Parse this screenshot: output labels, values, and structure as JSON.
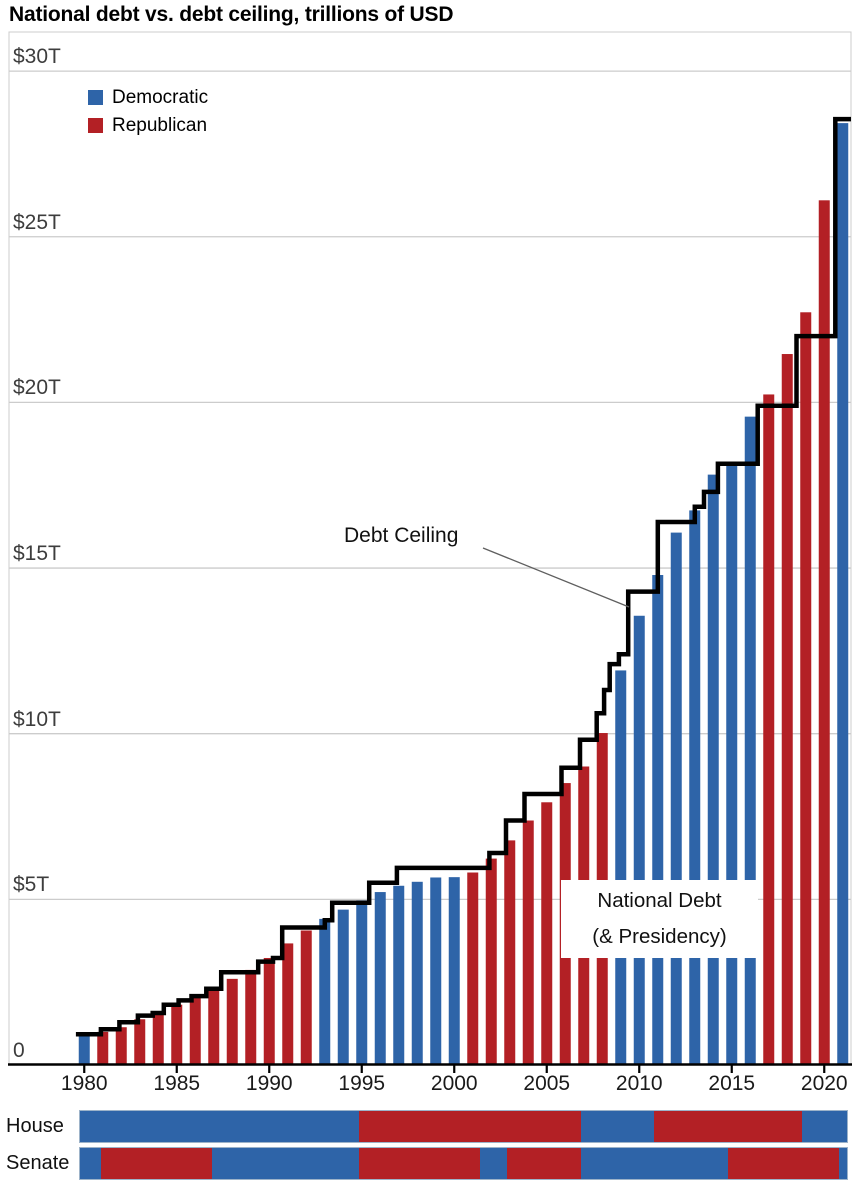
{
  "title": "National debt vs. debt ceiling, trillions of USD",
  "legend": {
    "items": [
      {
        "label": "Democratic",
        "party": "D"
      },
      {
        "label": "Republican",
        "party": "R"
      }
    ]
  },
  "annotations": {
    "ceiling_label": "Debt Ceiling",
    "debt_label_line1": "National Debt",
    "debt_label_line2": "(& Presidency)"
  },
  "colors": {
    "democratic": "#2e64a8",
    "republican": "#b32025",
    "ceiling_line": "#000000",
    "gridline": "#cccccc",
    "plot_border": "#cccccc",
    "axis": "#000000",
    "leader_line": "#5f5f5f"
  },
  "y_axis": {
    "ticks": [
      {
        "label": "$30T",
        "value": 30
      },
      {
        "label": "$25T",
        "value": 25
      },
      {
        "label": "$20T",
        "value": 20
      },
      {
        "label": "$15T",
        "value": 15
      },
      {
        "label": "$10T",
        "value": 10
      },
      {
        "label": "$5T",
        "value": 5
      },
      {
        "label": "0",
        "value": 0
      }
    ]
  },
  "x_axis": {
    "tick_years": [
      1980,
      1985,
      1990,
      1995,
      2000,
      2005,
      2010,
      2015,
      2020
    ]
  },
  "chart_data": {
    "type": "bar",
    "title": "National debt vs. debt ceiling, trillions of USD",
    "ylabel": "Trillions of USD",
    "ylim": [
      0,
      30
    ],
    "x_range": [
      1979.5,
      2021.5
    ],
    "grid": true,
    "series": [
      {
        "name": "National debt (& Presidency)",
        "unit": "trillions USD",
        "points": [
          {
            "year": 1980,
            "value": 0.91,
            "party": "D"
          },
          {
            "year": 1981,
            "value": 1.0,
            "party": "R"
          },
          {
            "year": 1982,
            "value": 1.14,
            "party": "R"
          },
          {
            "year": 1983,
            "value": 1.38,
            "party": "R"
          },
          {
            "year": 1984,
            "value": 1.57,
            "party": "R"
          },
          {
            "year": 1985,
            "value": 1.82,
            "party": "R"
          },
          {
            "year": 1986,
            "value": 2.12,
            "party": "R"
          },
          {
            "year": 1987,
            "value": 2.35,
            "party": "R"
          },
          {
            "year": 1988,
            "value": 2.6,
            "party": "R"
          },
          {
            "year": 1989,
            "value": 2.87,
            "party": "R"
          },
          {
            "year": 1990,
            "value": 3.23,
            "party": "R"
          },
          {
            "year": 1991,
            "value": 3.67,
            "party": "R"
          },
          {
            "year": 1992,
            "value": 4.06,
            "party": "R"
          },
          {
            "year": 1993,
            "value": 4.41,
            "party": "D"
          },
          {
            "year": 1994,
            "value": 4.69,
            "party": "D"
          },
          {
            "year": 1995,
            "value": 4.97,
            "party": "D"
          },
          {
            "year": 1996,
            "value": 5.22,
            "party": "D"
          },
          {
            "year": 1997,
            "value": 5.41,
            "party": "D"
          },
          {
            "year": 1998,
            "value": 5.53,
            "party": "D"
          },
          {
            "year": 1999,
            "value": 5.66,
            "party": "D"
          },
          {
            "year": 2000,
            "value": 5.67,
            "party": "D"
          },
          {
            "year": 2001,
            "value": 5.81,
            "party": "R"
          },
          {
            "year": 2002,
            "value": 6.23,
            "party": "R"
          },
          {
            "year": 2003,
            "value": 6.78,
            "party": "R"
          },
          {
            "year": 2004,
            "value": 7.38,
            "party": "R"
          },
          {
            "year": 2005,
            "value": 7.93,
            "party": "R"
          },
          {
            "year": 2006,
            "value": 8.51,
            "party": "R"
          },
          {
            "year": 2007,
            "value": 9.01,
            "party": "R"
          },
          {
            "year": 2008,
            "value": 10.02,
            "party": "R"
          },
          {
            "year": 2009,
            "value": 11.91,
            "party": "D"
          },
          {
            "year": 2010,
            "value": 13.56,
            "party": "D"
          },
          {
            "year": 2011,
            "value": 14.79,
            "party": "D"
          },
          {
            "year": 2012,
            "value": 16.07,
            "party": "D"
          },
          {
            "year": 2013,
            "value": 16.74,
            "party": "D"
          },
          {
            "year": 2014,
            "value": 17.82,
            "party": "D"
          },
          {
            "year": 2015,
            "value": 18.15,
            "party": "D"
          },
          {
            "year": 2016,
            "value": 19.57,
            "party": "D"
          },
          {
            "year": 2017,
            "value": 20.24,
            "party": "R"
          },
          {
            "year": 2018,
            "value": 21.46,
            "party": "R"
          },
          {
            "year": 2019,
            "value": 22.72,
            "party": "R"
          },
          {
            "year": 2020,
            "value": 26.1,
            "party": "R"
          },
          {
            "year": 2021,
            "value": 28.43,
            "party": "D"
          }
        ]
      },
      {
        "name": "Debt ceiling",
        "unit": "trillions USD",
        "style": "step-line",
        "end_year": 2021.6,
        "steps": [
          {
            "year": 1979.55,
            "value": 0.93
          },
          {
            "year": 1980.9,
            "value": 1.08
          },
          {
            "year": 1981.9,
            "value": 1.29
          },
          {
            "year": 1982.9,
            "value": 1.49
          },
          {
            "year": 1983.7,
            "value": 1.57
          },
          {
            "year": 1984.3,
            "value": 1.82
          },
          {
            "year": 1985.1,
            "value": 1.95
          },
          {
            "year": 1985.8,
            "value": 2.08
          },
          {
            "year": 1986.6,
            "value": 2.3
          },
          {
            "year": 1987.4,
            "value": 2.8
          },
          {
            "year": 1989.4,
            "value": 3.12
          },
          {
            "year": 1990.2,
            "value": 3.23
          },
          {
            "year": 1990.7,
            "value": 4.15
          },
          {
            "year": 1993.0,
            "value": 4.37
          },
          {
            "year": 1993.4,
            "value": 4.9
          },
          {
            "year": 1995.4,
            "value": 5.5
          },
          {
            "year": 1996.9,
            "value": 5.95
          },
          {
            "year": 2001.9,
            "value": 6.4
          },
          {
            "year": 2002.8,
            "value": 7.38
          },
          {
            "year": 2003.8,
            "value": 8.18
          },
          {
            "year": 2005.8,
            "value": 8.97
          },
          {
            "year": 2006.8,
            "value": 9.82
          },
          {
            "year": 2007.7,
            "value": 10.62
          },
          {
            "year": 2008.1,
            "value": 11.32
          },
          {
            "year": 2008.4,
            "value": 12.1
          },
          {
            "year": 2008.9,
            "value": 12.4
          },
          {
            "year": 2009.4,
            "value": 14.29
          },
          {
            "year": 2011.0,
            "value": 16.39
          },
          {
            "year": 2013.0,
            "value": 16.85
          },
          {
            "year": 2013.5,
            "value": 17.3
          },
          {
            "year": 2014.25,
            "value": 18.15
          },
          {
            "year": 2016.4,
            "value": 19.9
          },
          {
            "year": 2018.5,
            "value": 22.0
          },
          {
            "year": 2020.6,
            "value": 28.55
          }
        ]
      }
    ]
  },
  "congress": {
    "house": {
      "label": "House",
      "segments": [
        {
          "party": "D",
          "from": 1979.7,
          "to": 1994.85
        },
        {
          "party": "R",
          "from": 1994.85,
          "to": 2006.85
        },
        {
          "party": "D",
          "from": 2006.85,
          "to": 2010.85
        },
        {
          "party": "R",
          "from": 2010.85,
          "to": 2018.85
        },
        {
          "party": "D",
          "from": 2018.85,
          "to": 2021.3
        }
      ]
    },
    "senate": {
      "label": "Senate",
      "segments": [
        {
          "party": "D",
          "from": 1979.7,
          "to": 1980.85
        },
        {
          "party": "R",
          "from": 1980.85,
          "to": 1986.85
        },
        {
          "party": "D",
          "from": 1986.85,
          "to": 1994.85
        },
        {
          "party": "R",
          "from": 1994.85,
          "to": 2001.4
        },
        {
          "party": "D",
          "from": 2001.4,
          "to": 2002.85
        },
        {
          "party": "R",
          "from": 2002.85,
          "to": 2006.85
        },
        {
          "party": "D",
          "from": 2006.85,
          "to": 2014.85
        },
        {
          "party": "R",
          "from": 2014.85,
          "to": 2020.85
        },
        {
          "party": "D",
          "from": 2020.85,
          "to": 2021.3
        }
      ]
    }
  }
}
